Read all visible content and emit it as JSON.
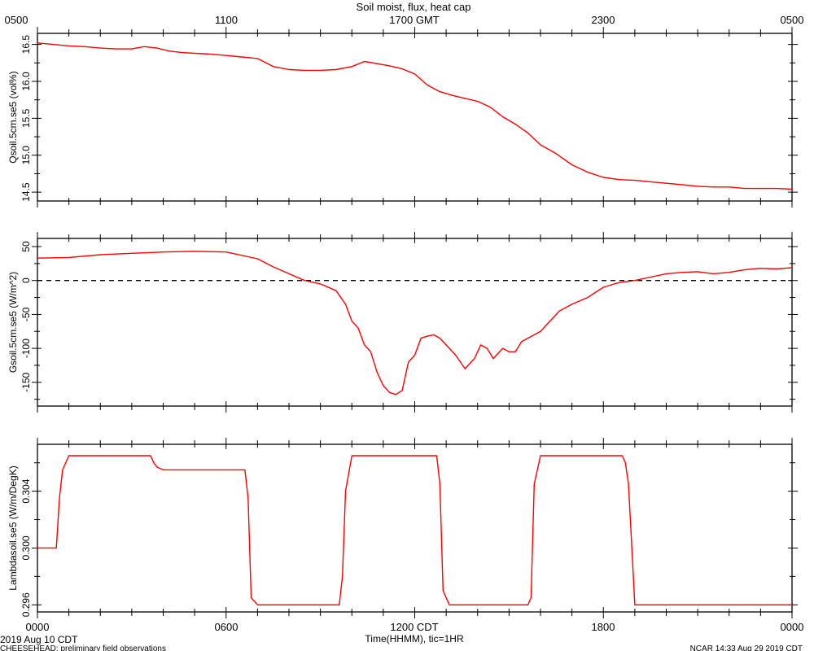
{
  "header": {
    "title": "Soil moist, flux, heat cap",
    "top_ticks": [
      "0500",
      "1100",
      "1700 GMT",
      "2300",
      "0500"
    ]
  },
  "footer": {
    "date_label": "2019 Aug 10 CDT",
    "project_note": "CHEESEHEAD: preliminary field observations",
    "xlabel": "Time(HHMM), tic=1HR",
    "stamp": "NCAR 14:33 Aug 29 2019 CDT",
    "bottom_ticks": [
      "0000",
      "0600",
      "1200 CDT",
      "1800",
      "0000"
    ]
  },
  "colors": {
    "series": "#ff0000",
    "axis": "#000000"
  },
  "chart_data": [
    {
      "type": "line",
      "ylabel": "Qsoil.5cm.se5 (vol%)",
      "ylim": [
        14.38,
        16.65
      ],
      "yticks": [
        14.5,
        15.0,
        15.5,
        16.0,
        16.5
      ],
      "yticklabels": [
        "14.5",
        "15.0",
        "15.5",
        "16.0",
        "16.5"
      ],
      "x_hours": [
        0,
        0.5,
        1,
        1.5,
        2,
        2.5,
        3,
        3.4,
        3.8,
        4.2,
        4.6,
        5,
        5.5,
        6,
        6.5,
        7,
        7.5,
        8,
        8.5,
        9,
        9.5,
        10,
        10.4,
        10.8,
        11.2,
        11.6,
        12,
        12.4,
        12.8,
        13.2,
        13.6,
        14,
        14.4,
        14.8,
        15.2,
        15.6,
        16,
        16.5,
        17,
        17.5,
        18,
        18.5,
        19,
        19.5,
        20,
        20.5,
        21,
        21.5,
        22,
        22.5,
        23,
        23.5,
        24
      ],
      "values": [
        16.52,
        16.5,
        16.48,
        16.47,
        16.45,
        16.44,
        16.44,
        16.47,
        16.45,
        16.41,
        16.39,
        16.38,
        16.37,
        16.35,
        16.33,
        16.31,
        16.2,
        16.16,
        16.15,
        16.15,
        16.16,
        16.2,
        16.27,
        16.24,
        16.21,
        16.17,
        16.1,
        15.95,
        15.86,
        15.81,
        15.77,
        15.73,
        15.65,
        15.52,
        15.42,
        15.3,
        15.14,
        15.02,
        14.87,
        14.77,
        14.7,
        14.67,
        14.66,
        14.64,
        14.62,
        14.6,
        14.58,
        14.57,
        14.57,
        14.55,
        14.55,
        14.55,
        14.54
      ]
    },
    {
      "type": "line",
      "ylabel": "Gsoil.5cm.se5 (W/m^2)",
      "ylim": [
        -185,
        62
      ],
      "yticks": [
        -150,
        -100,
        -50,
        0,
        50
      ],
      "yticklabels": [
        "-150",
        "-100",
        "-50",
        "0",
        "50"
      ],
      "reference_line": 0,
      "x_hours": [
        0,
        1,
        2,
        3,
        4,
        5,
        6,
        7,
        7.5,
        8,
        8.5,
        9,
        9.5,
        9.8,
        10,
        10.2,
        10.4,
        10.6,
        10.8,
        11,
        11.2,
        11.4,
        11.6,
        11.8,
        12,
        12.2,
        12.4,
        12.6,
        12.8,
        13,
        13.3,
        13.6,
        13.9,
        14.1,
        14.3,
        14.5,
        14.6,
        14.8,
        15,
        15.2,
        15.4,
        15.6,
        15.8,
        16,
        16.2,
        16.4,
        16.6,
        17,
        17.5,
        18,
        18.5,
        19,
        19.5,
        20,
        20.5,
        21,
        21.5,
        22,
        22.5,
        23,
        23.5,
        24
      ],
      "values": [
        33,
        34,
        38,
        40,
        42,
        43,
        42,
        32,
        20,
        10,
        0,
        -5,
        -15,
        -35,
        -60,
        -70,
        -95,
        -105,
        -135,
        -155,
        -165,
        -168,
        -162,
        -120,
        -110,
        -85,
        -82,
        -80,
        -85,
        -95,
        -110,
        -130,
        -115,
        -95,
        -100,
        -115,
        -110,
        -100,
        -105,
        -105,
        -90,
        -85,
        -80,
        -75,
        -65,
        -55,
        -45,
        -35,
        -25,
        -10,
        -3,
        0,
        5,
        10,
        12,
        13,
        10,
        12,
        16,
        18,
        17,
        19
      ]
    },
    {
      "type": "line",
      "ylabel": "Lambdasoil.se5 (W/m/DegK)",
      "ylim": [
        0.2955,
        0.3073
      ],
      "yticks": [
        0.296,
        0.3,
        0.304
      ],
      "yticklabels": [
        "0.296",
        "0.300",
        "0.304"
      ],
      "x_hours": [
        0,
        0.6,
        0.7,
        0.8,
        1,
        3.6,
        3.7,
        3.8,
        4,
        6.6,
        6.7,
        6.8,
        7,
        9.6,
        9.7,
        9.8,
        10,
        12.7,
        12.8,
        12.9,
        13.1,
        15.6,
        15.7,
        15.8,
        16,
        18.6,
        18.7,
        18.8,
        19,
        24
      ],
      "values": [
        0.3,
        0.3,
        0.3035,
        0.3055,
        0.3065,
        0.3065,
        0.306,
        0.3057,
        0.3055,
        0.3055,
        0.3035,
        0.2965,
        0.296,
        0.296,
        0.298,
        0.304,
        0.3065,
        0.3065,
        0.3045,
        0.297,
        0.296,
        0.296,
        0.2965,
        0.3045,
        0.3065,
        0.3065,
        0.306,
        0.3045,
        0.296,
        0.296
      ]
    }
  ]
}
